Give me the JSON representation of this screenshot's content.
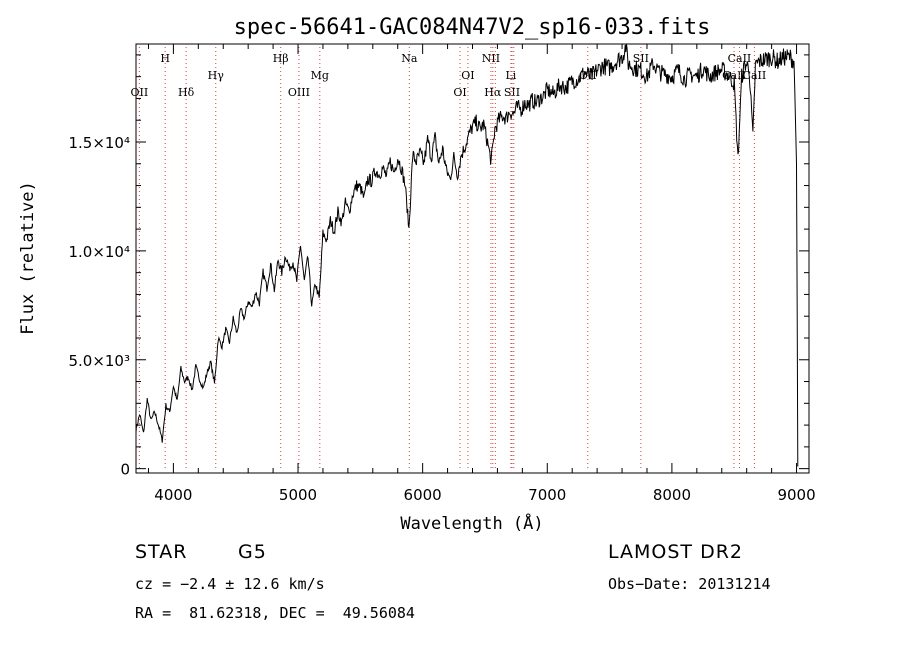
{
  "chart_data": {
    "type": "line",
    "title": "spec-56641-GAC084N47V2_sp16-033.fits",
    "xlabel": "Wavelength (Å)",
    "ylabel": "Flux (relative)",
    "xlim": [
      3700,
      9100
    ],
    "ylim": [
      -200,
      19500
    ],
    "x_ticks": [
      {
        "value": 4000,
        "label": "4000"
      },
      {
        "value": 5000,
        "label": "5000"
      },
      {
        "value": 6000,
        "label": "6000"
      },
      {
        "value": 7000,
        "label": "7000"
      },
      {
        "value": 8000,
        "label": "8000"
      },
      {
        "value": 9000,
        "label": "9000"
      }
    ],
    "y_ticks": [
      {
        "value": 0,
        "label": "0"
      },
      {
        "value": 5000,
        "label": "5.0×10³"
      },
      {
        "value": 10000,
        "label": "1.0×10⁴"
      },
      {
        "value": 15000,
        "label": "1.5×10⁴"
      }
    ],
    "grid": false,
    "series": [
      {
        "x": [
          3700,
          3730,
          3760,
          3790,
          3820,
          3850,
          3880,
          3910,
          3940,
          3970,
          4000,
          4030,
          4060,
          4090,
          4120,
          4150,
          4180,
          4210,
          4240,
          4270,
          4300,
          4330,
          4360,
          4390,
          4420,
          4450,
          4480,
          4510,
          4540,
          4570,
          4600,
          4630,
          4660,
          4690,
          4720,
          4750,
          4780,
          4810,
          4840,
          4870,
          4900,
          4930,
          4960,
          4990,
          5020,
          5050,
          5080,
          5110,
          5140,
          5170,
          5200,
          5230,
          5260,
          5290,
          5320,
          5350,
          5380,
          5410,
          5440,
          5470,
          5500,
          5530,
          5560,
          5590,
          5620,
          5650,
          5680,
          5710,
          5740,
          5770,
          5800,
          5830,
          5860,
          5890,
          5920,
          5950,
          5980,
          6010,
          6040,
          6070,
          6100,
          6130,
          6160,
          6190,
          6220,
          6250,
          6280,
          6310,
          6340,
          6370,
          6400,
          6430,
          6460,
          6490,
          6520,
          6550,
          6580,
          6610,
          6640,
          6670,
          6700,
          6730,
          6760,
          6790,
          6820,
          6850,
          6880,
          6910,
          6940,
          6970,
          7000,
          7050,
          7100,
          7150,
          7200,
          7250,
          7300,
          7350,
          7400,
          7450,
          7500,
          7550,
          7600,
          7630,
          7650,
          7700,
          7750,
          7800,
          7850,
          7900,
          7950,
          8000,
          8050,
          8100,
          8150,
          8200,
          8250,
          8300,
          8350,
          8400,
          8450,
          8500,
          8530,
          8560,
          8590,
          8620,
          8650,
          8670,
          8700,
          8750,
          8800,
          8850,
          8900,
          8950,
          8980,
          9000,
          9010
        ],
        "y": [
          1800,
          2500,
          1600,
          3200,
          2200,
          2600,
          2000,
          1300,
          2900,
          2600,
          3800,
          3100,
          4600,
          4000,
          4200,
          3600,
          4700,
          4100,
          3700,
          4400,
          4900,
          3900,
          6000,
          5600,
          6400,
          5800,
          6900,
          6200,
          7300,
          6900,
          7700,
          7400,
          8100,
          7600,
          9000,
          8300,
          9400,
          8200,
          9600,
          9000,
          9800,
          9200,
          9500,
          8600,
          10300,
          8600,
          9700,
          7500,
          8500,
          7800,
          10800,
          10500,
          11400,
          10900,
          11800,
          11300,
          12200,
          11800,
          12600,
          13000,
          12900,
          12400,
          13300,
          13200,
          13700,
          13500,
          13800,
          13400,
          14100,
          13600,
          14300,
          13800,
          13000,
          11000,
          14400,
          14100,
          14500,
          14000,
          15100,
          14300,
          15200,
          14000,
          14700,
          13700,
          13300,
          14300,
          13500,
          14400,
          14800,
          15300,
          15700,
          15900,
          15600,
          15800,
          15000,
          14100,
          15600,
          16000,
          16200,
          16100,
          16400,
          16300,
          16600,
          16500,
          16800,
          16700,
          16900,
          16800,
          17000,
          17100,
          17400,
          17200,
          17600,
          17500,
          17800,
          17900,
          18200,
          18000,
          18300,
          18500,
          18400,
          18700,
          18900,
          19400,
          18600,
          18400,
          18300,
          18000,
          18600,
          18200,
          18100,
          18000,
          18300,
          17900,
          18100,
          18000,
          18400,
          18000,
          18200,
          18300,
          18100,
          17700,
          14200,
          18000,
          18600,
          18400,
          15200,
          18500,
          18700,
          18800,
          18900,
          18700,
          18900,
          18900,
          18700,
          14000,
          100
        ]
      }
    ],
    "line_markers": [
      {
        "x": 3727,
        "label": "OII",
        "row": 3
      },
      {
        "x": 3934,
        "label": "H",
        "row": 1
      },
      {
        "x": 4102,
        "label": "Hδ",
        "row": 3
      },
      {
        "x": 4340,
        "label": "Hγ",
        "row": 2
      },
      {
        "x": 4861,
        "label": "Hβ",
        "row": 1
      },
      {
        "x": 5007,
        "label": "OIII",
        "row": 3
      },
      {
        "x": 5175,
        "label": "Mg",
        "row": 2
      },
      {
        "x": 5893,
        "label": "Na",
        "row": 1
      },
      {
        "x": 6300,
        "label": "OI",
        "row": 3
      },
      {
        "x": 6363,
        "label": "OI",
        "row": 2
      },
      {
        "x": 6548,
        "label": "NII",
        "row": 1
      },
      {
        "x": 6563,
        "label": "Hα",
        "row": 3
      },
      {
        "x": 6583,
        "label": "",
        "row": 1
      },
      {
        "x": 6708,
        "label": "Li",
        "row": 2
      },
      {
        "x": 6717,
        "label": "SII",
        "row": 3
      },
      {
        "x": 6731,
        "label": "",
        "row": 3
      },
      {
        "x": 7325,
        "label": "OII",
        "row": 2
      },
      {
        "x": 7751,
        "label": "SII",
        "row": 1
      },
      {
        "x": 8498,
        "label": "CaII",
        "row": 2
      },
      {
        "x": 8542,
        "label": "CaII",
        "row": 1
      },
      {
        "x": 8662,
        "label": "CaII",
        "row": 2
      }
    ]
  },
  "info": {
    "obj_class": "STAR",
    "subclass": "G5",
    "survey": "LAMOST DR2",
    "cz": "cz = −2.4 ± 12.6 km/s",
    "obs_date": "Obs−Date: 20131214",
    "coords": "RA =  81.62318, DEC =  49.56084"
  }
}
